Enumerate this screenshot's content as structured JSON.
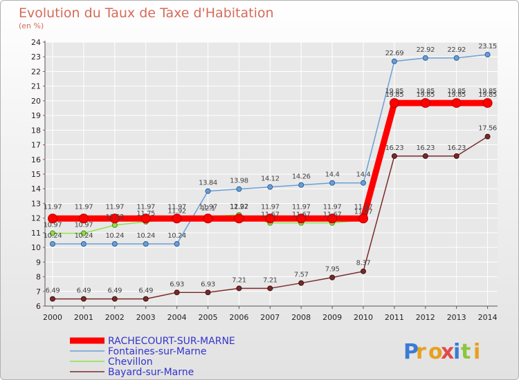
{
  "title": "Evolution du Taux de Taxe d'Habitation",
  "subtitle": "(en %)",
  "logo_text": "Proxiti",
  "colors": {
    "title": "#d56a5a",
    "axis": "#555555",
    "grid": "#ffffff"
  },
  "chart_data": {
    "type": "line",
    "x": [
      2000,
      2001,
      2002,
      2003,
      2004,
      2005,
      2006,
      2007,
      2008,
      2009,
      2010,
      2011,
      2012,
      2013,
      2014
    ],
    "ylim": [
      6,
      24
    ],
    "yticks": [
      6,
      7,
      8,
      9,
      10,
      11,
      12,
      13,
      14,
      15,
      16,
      17,
      18,
      19,
      20,
      21,
      22,
      23,
      24
    ],
    "legend_position": "bottom-left",
    "series": [
      {
        "name": "RACHECOURT-SUR-MARNE",
        "color": "#ff0000",
        "legend_color": "#3333cc",
        "values": [
          11.97,
          11.97,
          11.97,
          11.97,
          11.97,
          11.97,
          11.97,
          11.97,
          11.97,
          11.97,
          11.97,
          19.85,
          19.85,
          19.85,
          19.85
        ],
        "labels": [
          "11.97",
          "11.97",
          "11.97",
          "11.97",
          "11.97",
          "11.97",
          "11.97",
          "11.97",
          "11.97",
          "11.97",
          "11.97",
          "19.85",
          "19.85",
          "19.85",
          "19.85"
        ]
      },
      {
        "name": "Fontaines-sur-Marne",
        "color": "#6a9fd4",
        "legend_color": "#3333cc",
        "values": [
          10.24,
          10.24,
          10.24,
          10.24,
          10.24,
          13.84,
          13.98,
          14.12,
          14.26,
          14.4,
          14.4,
          22.69,
          22.92,
          22.92,
          23.15
        ],
        "labels": [
          "10.24",
          "10.24",
          "10.24",
          "10.24",
          "10.24",
          "13.84",
          "13.98",
          "14.12",
          "14.26",
          "14.4",
          "14.4",
          "22.69",
          "22.92",
          "22.92",
          "23.15"
        ]
      },
      {
        "name": "Chevillon",
        "color": "#8fe24a",
        "legend_color": "#3333cc",
        "values": [
          10.97,
          10.97,
          11.52,
          11.75,
          11.92,
          12.1,
          12.22,
          11.67,
          11.67,
          11.67,
          11.87,
          19.85,
          19.85,
          19.85,
          19.85
        ],
        "labels": [
          "10.97",
          "10.97",
          "11.52",
          "11.75",
          "11.92",
          "12.1",
          "12.22",
          "11.67",
          "11.67",
          "11.67",
          "11.87",
          "19.85",
          "19.85",
          "19.85",
          "19.85"
        ]
      },
      {
        "name": "Bayard-sur-Marne",
        "color": "#7a2a2a",
        "legend_color": "#3333cc",
        "values": [
          6.49,
          6.49,
          6.49,
          6.49,
          6.93,
          6.93,
          7.21,
          7.21,
          7.57,
          7.95,
          8.37,
          16.23,
          16.23,
          16.23,
          17.56
        ],
        "labels": [
          "6.49",
          "6.49",
          "6.49",
          "6.49",
          "6.93",
          "6.93",
          "7.21",
          "7.21",
          "7.57",
          "7.95",
          "8.37",
          "16.23",
          "16.23",
          "16.23",
          "17.56"
        ]
      }
    ]
  }
}
